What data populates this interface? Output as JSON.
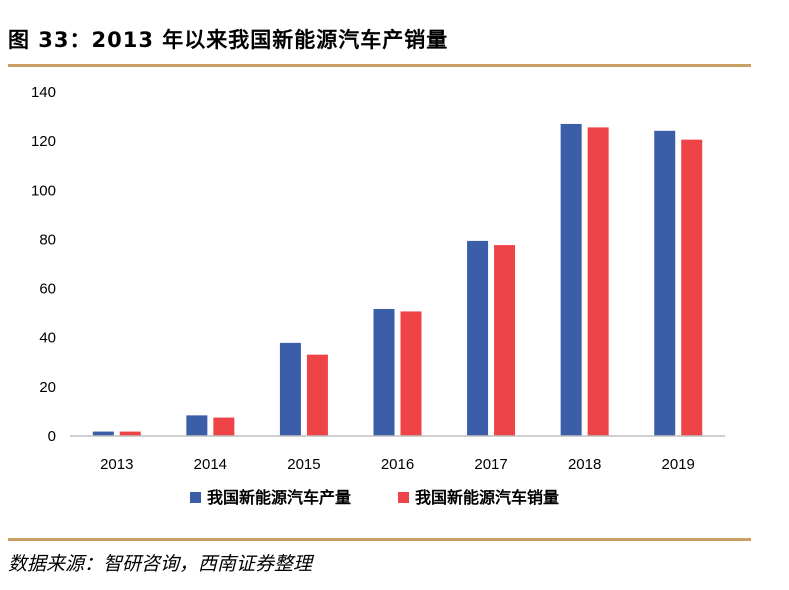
{
  "figure": {
    "title": "图 33：2013 年以来我国新能源汽车产销量",
    "source": "数据来源：智研咨询，西南证券整理"
  },
  "chart_data": {
    "type": "bar",
    "categories": [
      "2013",
      "2014",
      "2015",
      "2016",
      "2017",
      "2018",
      "2019"
    ],
    "series": [
      {
        "name": "我国新能源汽车产量",
        "color": "#3a5ea8",
        "values": [
          1.8,
          8.4,
          37.9,
          51.7,
          79.4,
          127.0,
          124.2
        ]
      },
      {
        "name": "我国新能源汽车销量",
        "color": "#ee4447",
        "values": [
          1.8,
          7.5,
          33.1,
          50.7,
          77.7,
          125.6,
          120.6
        ]
      }
    ],
    "ylim": [
      0,
      140
    ],
    "yticks": [
      0,
      20,
      40,
      60,
      80,
      100,
      120,
      140
    ],
    "grid": false,
    "legend_position": "bottom"
  }
}
